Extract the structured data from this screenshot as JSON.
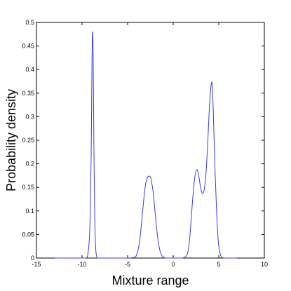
{
  "chart_data": {
    "type": "line",
    "title": "",
    "xlabel": "Mixture range",
    "ylabel": "Probability density",
    "xlim": [
      -15,
      10
    ],
    "ylim": [
      0,
      0.5
    ],
    "xticks": [
      -15,
      -10,
      -5,
      0,
      5,
      10
    ],
    "xtick_labels": [
      "-15",
      "-10",
      "-5",
      "0",
      "5",
      "10"
    ],
    "yticks": [
      0,
      0.05,
      0.1,
      0.15,
      0.2,
      0.25,
      0.3,
      0.35,
      0.4,
      0.45,
      0.5
    ],
    "ytick_labels": [
      "0",
      "0.05",
      "0.1",
      "0.15",
      "0.2",
      "0.25",
      "0.3",
      "0.35",
      "0.4",
      "0.45",
      "0.5"
    ],
    "grid": false,
    "line_color": "#3a3ae8",
    "series": [
      {
        "x": [
          -13.0,
          -10.0,
          -9.6,
          -9.4,
          -9.2,
          -9.1,
          -9.0,
          -8.95,
          -8.9,
          -8.85,
          -8.8,
          -8.75,
          -8.7,
          -8.6,
          -8.5,
          -8.4,
          -8.3,
          -8.0,
          -7.0,
          -5.0,
          -4.2,
          -4.0,
          -3.8,
          -3.6,
          -3.4,
          -3.2,
          -3.0,
          -2.8,
          -2.6,
          -2.5,
          -2.4,
          -2.2,
          -2.0,
          -1.8,
          -1.6,
          -1.4,
          -1.2,
          -1.0,
          -0.8,
          0.0,
          1.0,
          1.4,
          1.6,
          1.8,
          2.0,
          2.2,
          2.4,
          2.6,
          2.8,
          3.0,
          3.2,
          3.4,
          3.6,
          3.8,
          4.0,
          4.2,
          4.3,
          4.4,
          4.6,
          4.8,
          5.0,
          5.2,
          5.4,
          5.6,
          6.0,
          7.0
        ],
        "y": [
          0.0,
          0.0,
          0.0,
          0.004,
          0.04,
          0.1,
          0.22,
          0.32,
          0.43,
          0.478,
          0.46,
          0.36,
          0.24,
          0.08,
          0.02,
          0.004,
          0.0,
          0.0,
          0.0,
          0.0,
          0.002,
          0.008,
          0.022,
          0.05,
          0.09,
          0.13,
          0.16,
          0.172,
          0.174,
          0.172,
          0.165,
          0.14,
          0.1,
          0.06,
          0.03,
          0.012,
          0.004,
          0.001,
          0.0,
          0.0,
          0.0,
          0.004,
          0.012,
          0.04,
          0.09,
          0.14,
          0.175,
          0.188,
          0.175,
          0.15,
          0.137,
          0.145,
          0.18,
          0.25,
          0.33,
          0.372,
          0.36,
          0.31,
          0.18,
          0.08,
          0.025,
          0.006,
          0.001,
          0.0,
          0.0,
          0.0
        ]
      }
    ]
  }
}
